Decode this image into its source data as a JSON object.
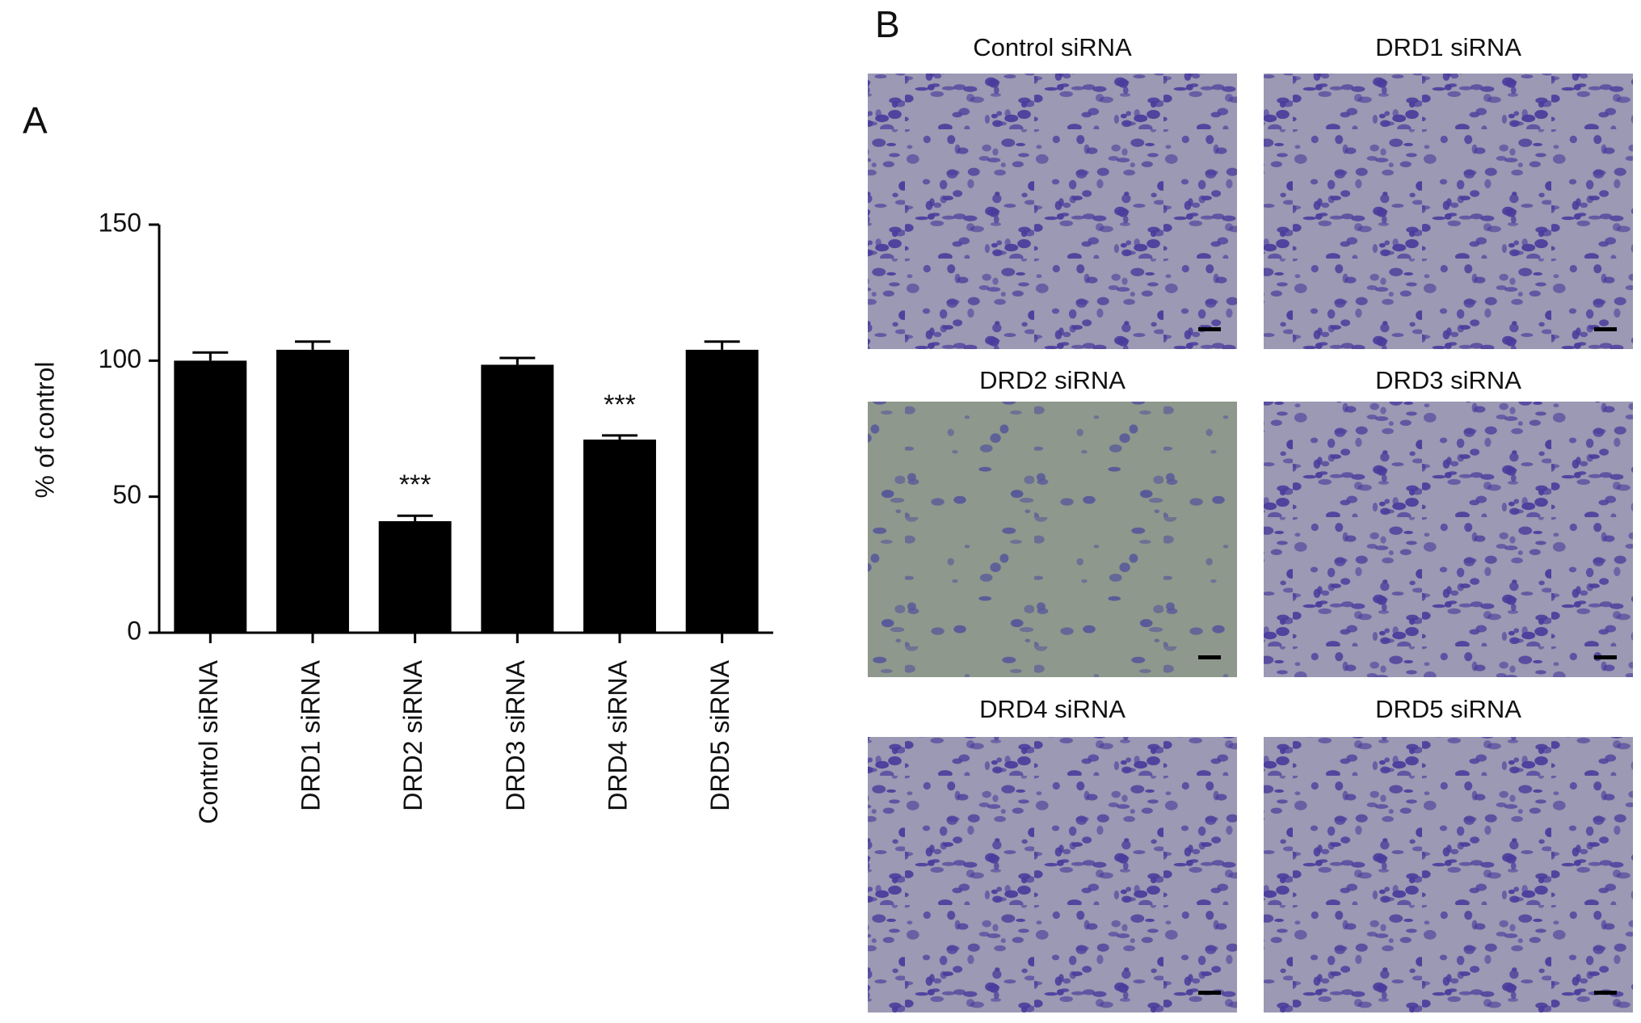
{
  "panel_a_label": "A",
  "chart_data": {
    "type": "bar",
    "ylabel": "% of control",
    "categories": [
      "Control siRNA",
      "DRD1 siRNA",
      "DRD2 siRNA",
      "DRD3 siRNA",
      "DRD4 siRNA",
      "DRD5 siRNA"
    ],
    "values": [
      100,
      104,
      41,
      98.5,
      71,
      104
    ],
    "errors": [
      3,
      3,
      2,
      2.5,
      1.5,
      3
    ],
    "color": "#000000",
    "ylim": [
      0,
      150
    ],
    "yticks": [
      0,
      50,
      100,
      150
    ],
    "annotations": [
      {
        "text": "***",
        "x": "DRD2 siRNA"
      },
      {
        "text": "***",
        "x": "DRD4 siRNA"
      }
    ]
  },
  "panel_b": {
    "label": "B",
    "images": [
      {
        "title": "Control siRNA"
      },
      {
        "title": "DRD1 siRNA"
      },
      {
        "title": "DRD2 siRNA"
      },
      {
        "title": "DRD3 siRNA"
      },
      {
        "title": "DRD4 siRNA"
      },
      {
        "title": "DRD5 siRNA"
      }
    ]
  }
}
